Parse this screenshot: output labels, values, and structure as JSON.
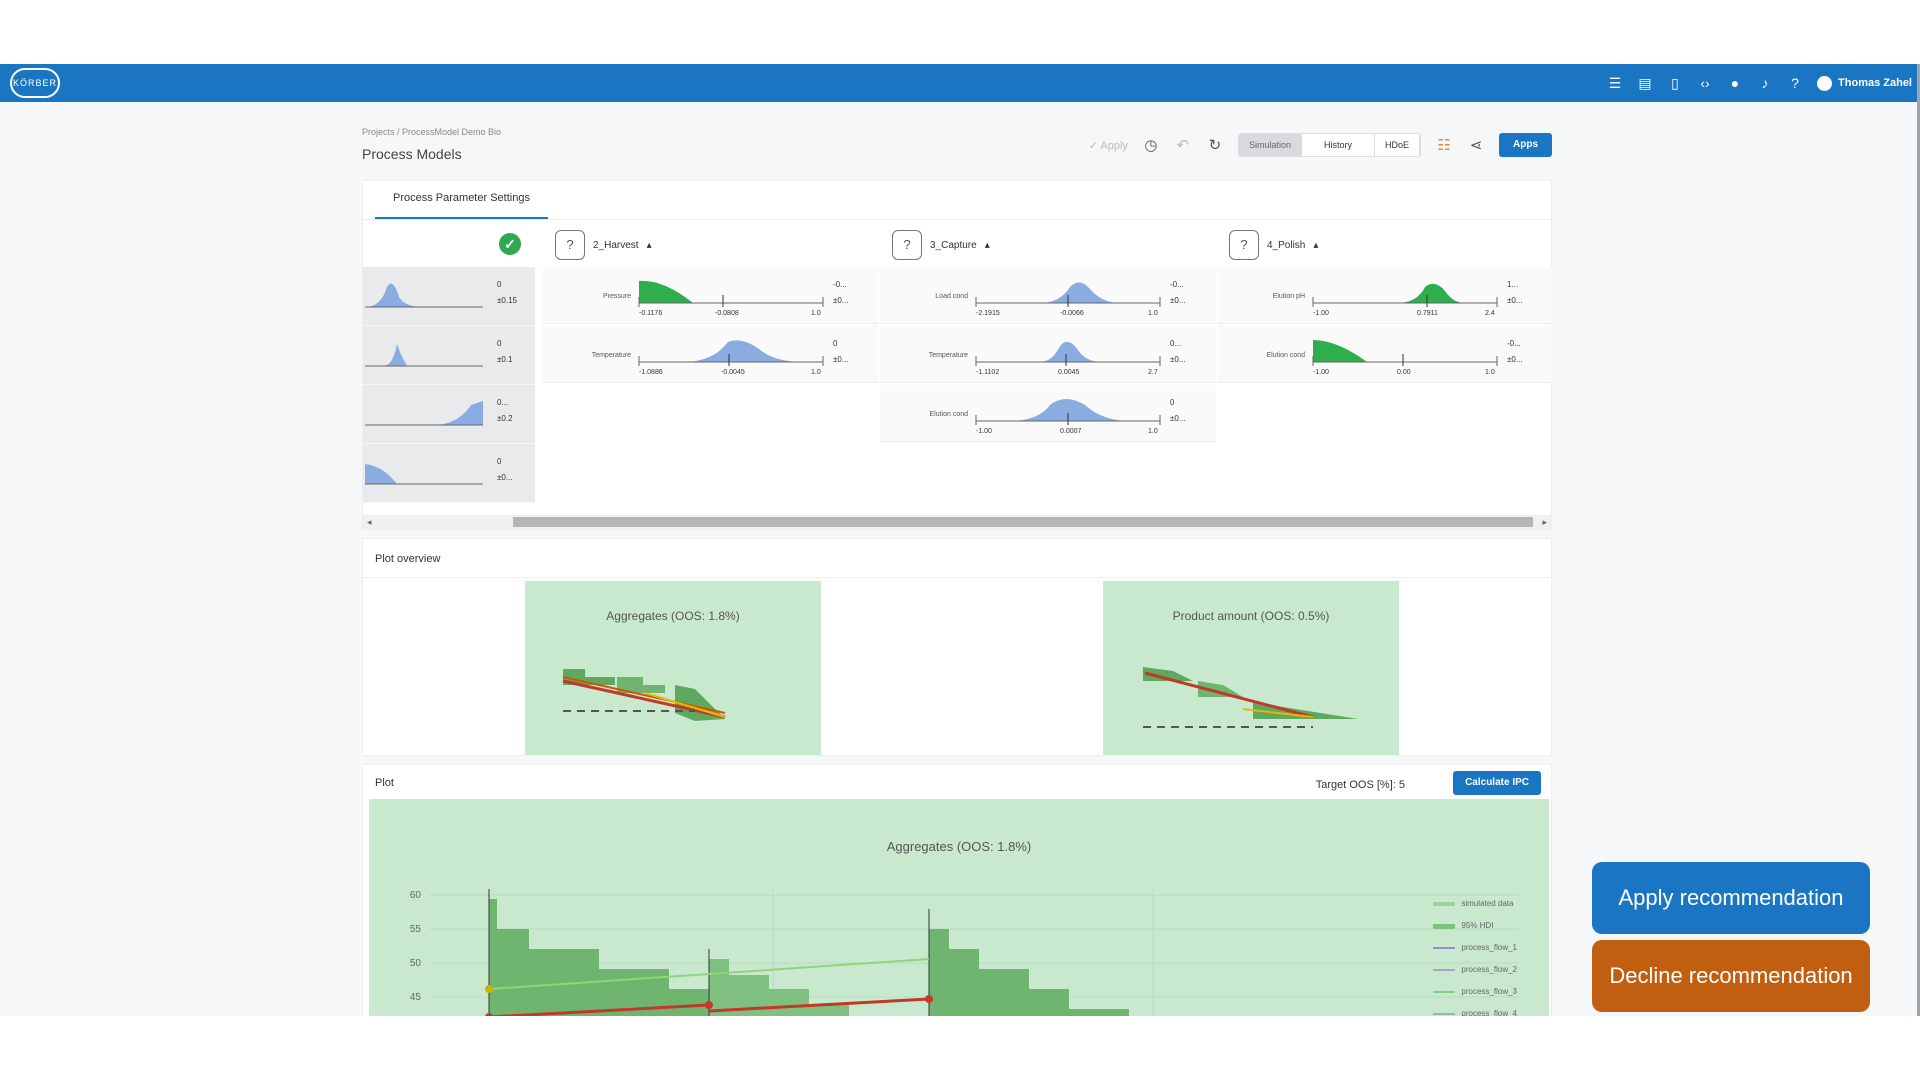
{
  "topbar": {
    "logo": "KÖRBER",
    "icons": [
      "list-icon",
      "book-icon",
      "document-icon",
      "code-icon",
      "globe-icon",
      "bell-icon",
      "help-icon"
    ],
    "user": "Thomas Zahel"
  },
  "breadcrumb": "Projects / ProcessModel Demo Bio",
  "page_title": "Process Models",
  "toolbar": {
    "apply": "Apply",
    "seg": [
      "Simulation",
      "History",
      "HDoE"
    ],
    "apps": "Apps"
  },
  "tabs": {
    "settings": "Process Parameter Settings"
  },
  "left_rows": [
    {
      "val1": "0",
      "val2": "±0.15"
    },
    {
      "val1": "0",
      "val2": "±0.1"
    },
    {
      "val1": "0...",
      "val2": "±0.2"
    },
    {
      "val1": "0",
      "val2": "±0..."
    }
  ],
  "stages": [
    {
      "name": "2_Harvest",
      "params": [
        {
          "label": "Pressure",
          "min": "-0.1176",
          "sp": "-0.0808",
          "max": "1.0",
          "v1": "-0...",
          "v2": "±0..."
        },
        {
          "label": "Temperature",
          "min": "-1.0886",
          "sp": "-0.0045",
          "max": "1.0",
          "v1": "0",
          "v2": "±0..."
        }
      ]
    },
    {
      "name": "3_Capture",
      "params": [
        {
          "label": "Load cond",
          "min": "-2.1915",
          "sp": "-0.0066",
          "max": "1.0",
          "v1": "-0...",
          "v2": "±0..."
        },
        {
          "label": "Temperature",
          "min": "-1.1102",
          "sp": "0.0045",
          "max": "2.7",
          "v1": "0...",
          "v2": "±0..."
        },
        {
          "label": "Elution cond",
          "min": "-1.00",
          "sp": "0.0007",
          "max": "1.0",
          "v1": "0",
          "v2": "±0..."
        }
      ]
    },
    {
      "name": "4_Polish",
      "params": [
        {
          "label": "Elution pH",
          "min": "-1.00",
          "sp": "0.7911",
          "max": "2.4",
          "v1": "1...",
          "v2": "±0..."
        },
        {
          "label": "Elution cond",
          "min": "-1.00",
          "sp": "0.00",
          "max": "1.0",
          "v1": "-0...",
          "v2": "±0..."
        }
      ]
    }
  ],
  "overview": {
    "title": "Plot overview",
    "thumbs": [
      "Aggregates (OOS: 1.8%)",
      "Product amount (OOS: 0.5%)"
    ]
  },
  "plot": {
    "title": "Plot",
    "target": "Target OOS [%]: 5",
    "calc": "Calculate IPC",
    "chart_title": "Aggregates (OOS: 1.8%)",
    "yticks": [
      "60",
      "55",
      "50",
      "45"
    ],
    "legend": [
      "simulated data",
      "95% HDI",
      "process_flow_1",
      "process_flow_2",
      "process_flow_3",
      "process_flow_4"
    ]
  },
  "recommend": {
    "apply": "Apply recommendation",
    "decline": "Decline recommendation"
  },
  "colors": {
    "brand_blue": "#1a75c2",
    "decline_orange": "#c25e10",
    "plot_bg": "#c8e9cd"
  }
}
